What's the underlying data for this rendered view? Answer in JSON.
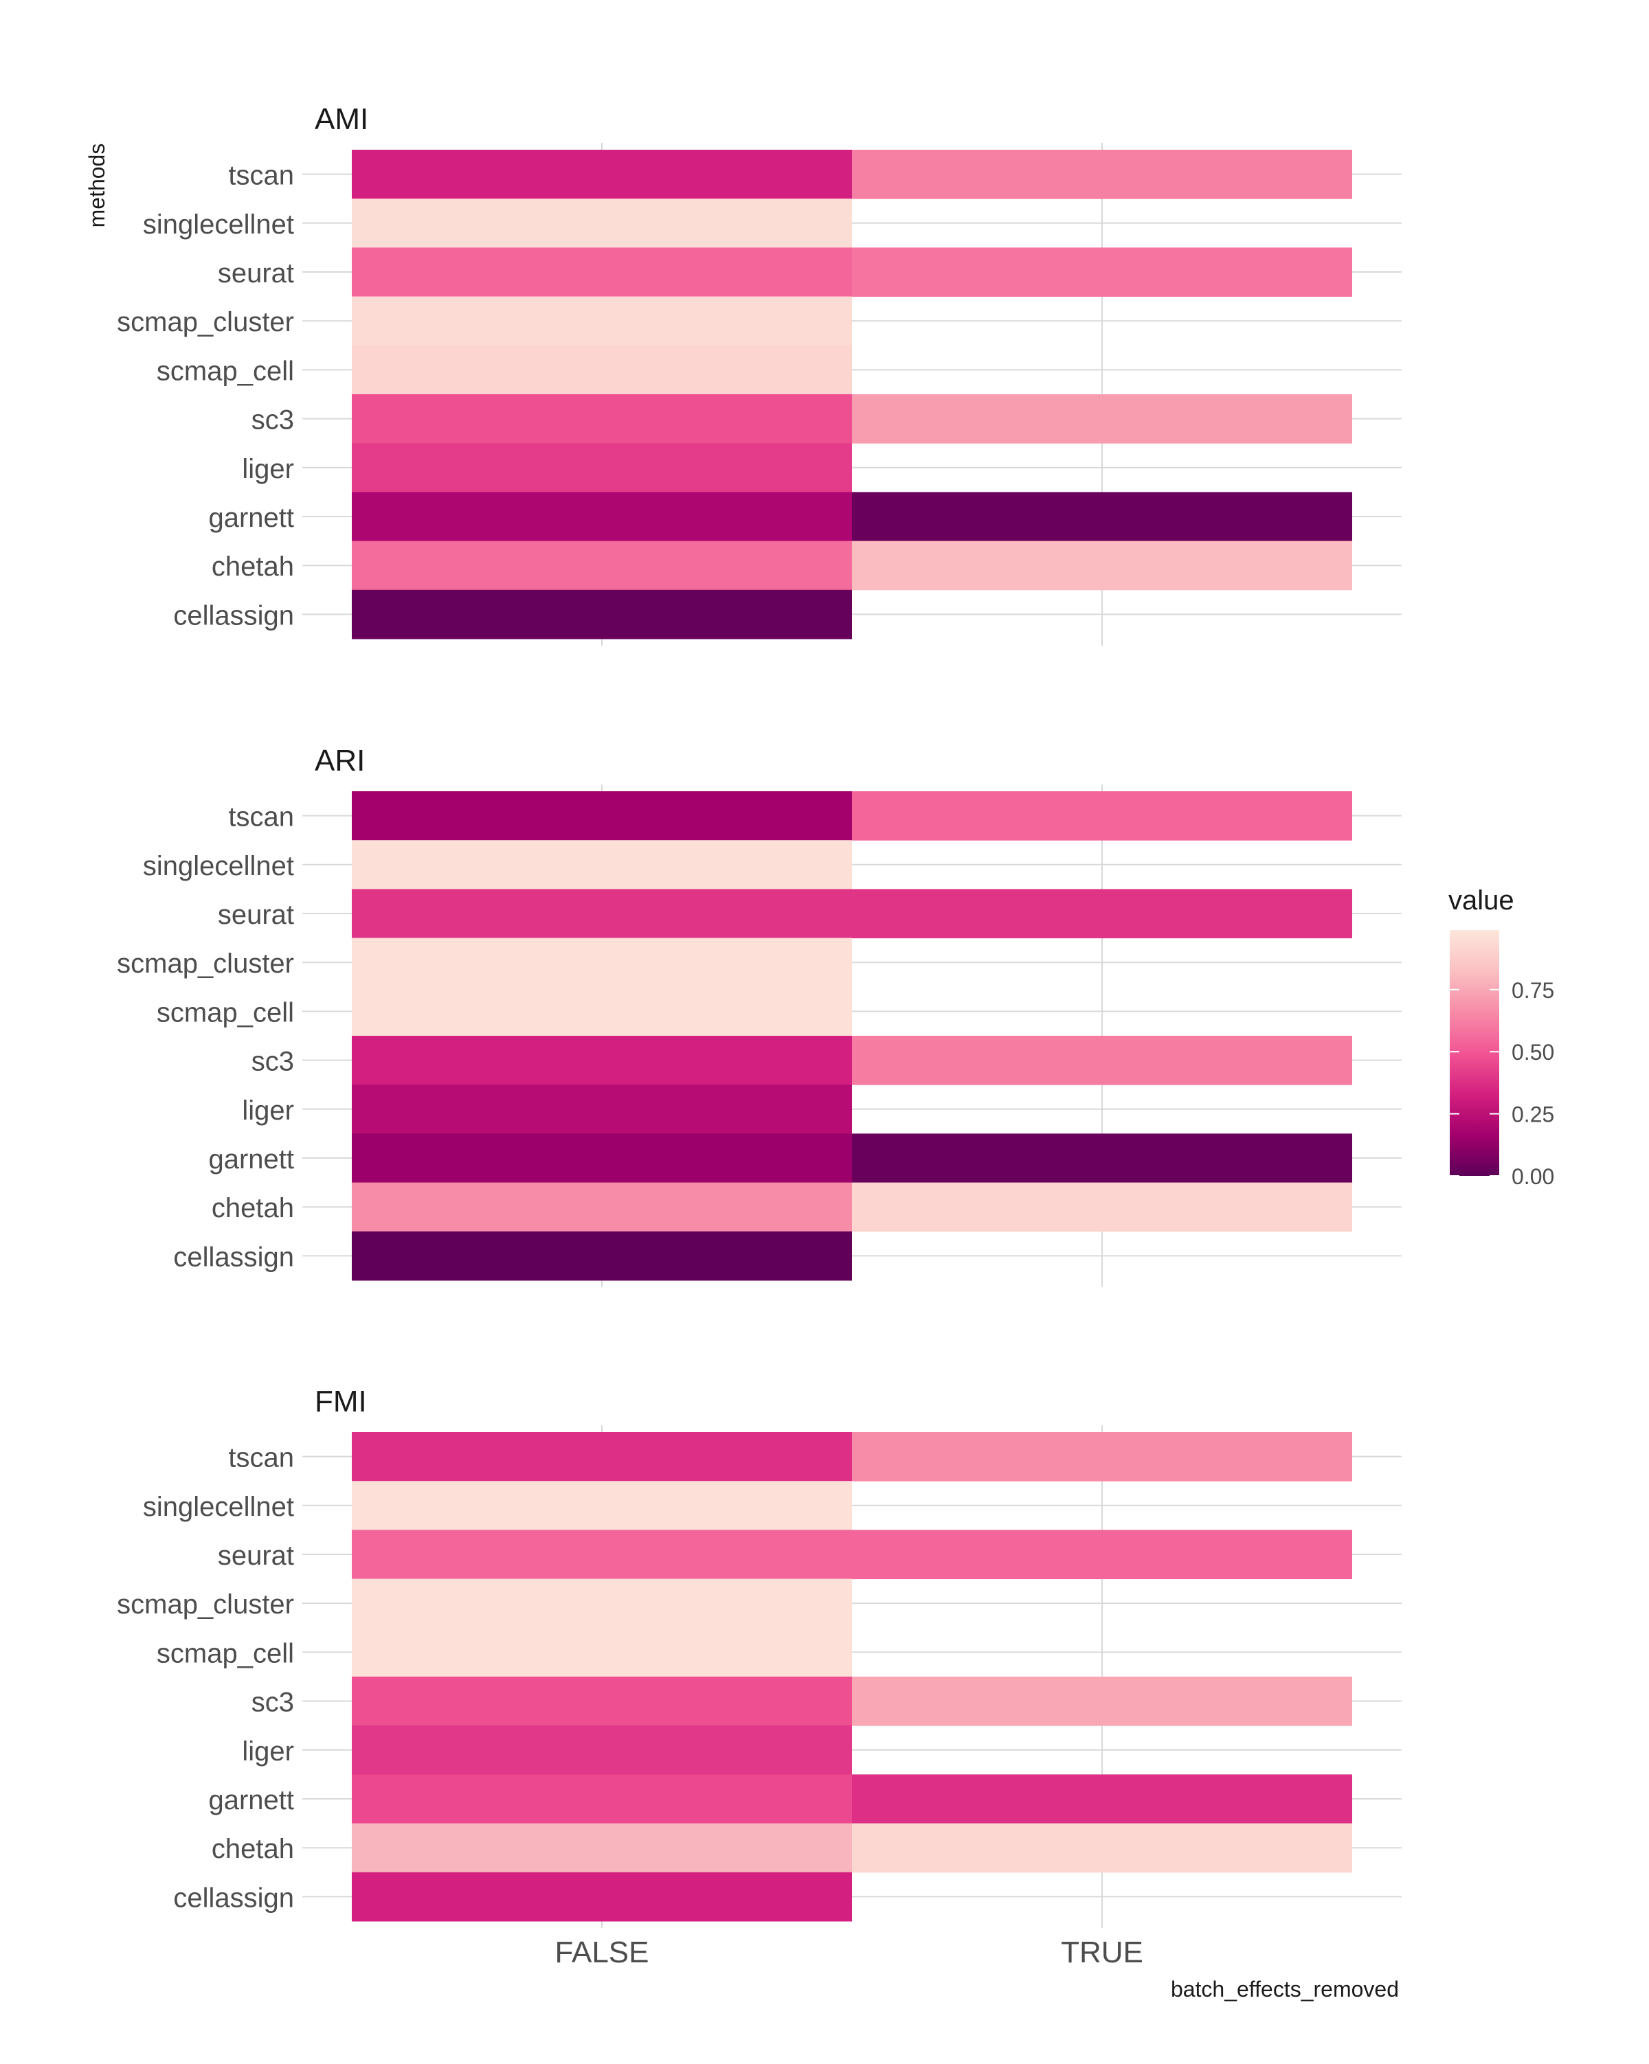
{
  "chart_data": {
    "type": "heatmap",
    "ylabel": "methods",
    "xlabel": "batch_effects_removed",
    "x_categories": [
      "FALSE",
      "TRUE"
    ],
    "y_categories": [
      "tscan",
      "singlecellnet",
      "seurat",
      "scmap_cluster",
      "scmap_cell",
      "sc3",
      "liger",
      "garnett",
      "chetah",
      "cellassign"
    ],
    "grid": true,
    "legend": {
      "title": "value",
      "position": "right",
      "ticks": [
        "0.00",
        "0.25",
        "0.50",
        "0.75"
      ],
      "tick_values": [
        0,
        0.25,
        0.5,
        0.75
      ],
      "range": [
        0,
        1
      ],
      "colors": [
        "#5c0058",
        "#a3006d",
        "#d4207f",
        "#f25594",
        "#f78ba8",
        "#fac0c2",
        "#fde6dc"
      ]
    },
    "panels": [
      {
        "title": "AMI",
        "cells": {
          "tscan": [
            0.33,
            0.63
          ],
          "singlecellnet": [
            0.96,
            null
          ],
          "seurat": [
            0.55,
            0.6
          ],
          "scmap_cluster": [
            0.95,
            null
          ],
          "scmap_cell": [
            0.92,
            null
          ],
          "sc3": [
            0.48,
            0.72
          ],
          "liger": [
            0.42,
            null
          ],
          "garnett": [
            0.2,
            0.03
          ],
          "chetah": [
            0.57,
            0.82
          ],
          "cellassign": [
            0.02,
            null
          ]
        }
      },
      {
        "title": "ARI",
        "cells": {
          "tscan": [
            0.17,
            0.55
          ],
          "singlecellnet": [
            0.97,
            null
          ],
          "seurat": [
            0.4,
            0.4
          ],
          "scmap_cluster": [
            0.98,
            null
          ],
          "scmap_cell": [
            0.98,
            null
          ],
          "sc3": [
            0.33,
            0.62
          ],
          "liger": [
            0.23,
            null
          ],
          "garnett": [
            0.15,
            0.03
          ],
          "chetah": [
            0.67,
            0.92
          ],
          "cellassign": [
            0.01,
            null
          ]
        }
      },
      {
        "title": "FMI",
        "cells": {
          "tscan": [
            0.38,
            0.67
          ],
          "singlecellnet": [
            0.98,
            null
          ],
          "seurat": [
            0.55,
            0.55
          ],
          "scmap_cluster": [
            0.98,
            null
          ],
          "scmap_cell": [
            0.98,
            null
          ],
          "sc3": [
            0.48,
            0.75
          ],
          "liger": [
            0.41,
            null
          ],
          "garnett": [
            0.46,
            0.38
          ],
          "chetah": [
            0.8,
            0.93
          ],
          "cellassign": [
            0.33,
            null
          ]
        }
      }
    ]
  }
}
